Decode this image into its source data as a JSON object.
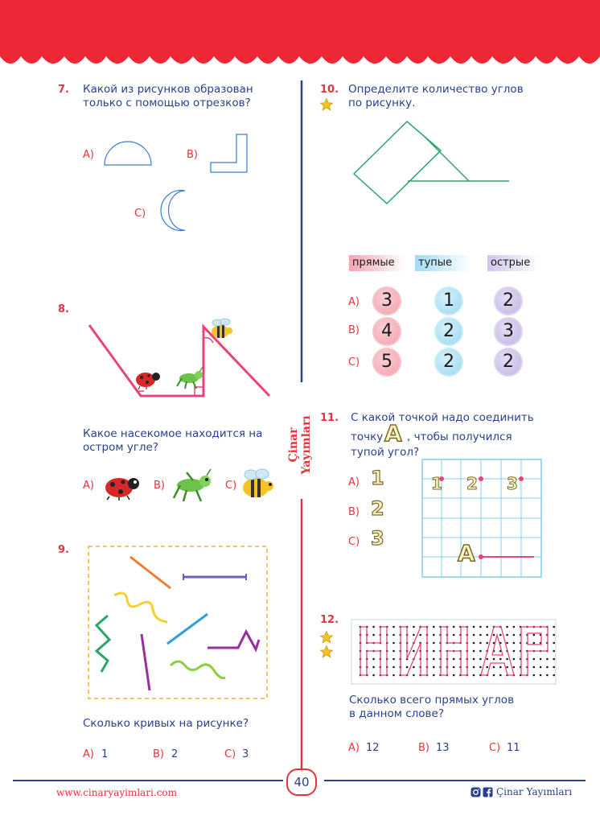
{
  "footer": {
    "website": "www.cinaryayimlari.com",
    "page_number": "40",
    "brand": "Çinar Yayımları"
  },
  "spine_text": "Çinar Yayımları",
  "q7": {
    "number": "7.",
    "text_line1": "Какой из рисунков образован",
    "text_line2": "только с помощью отрезков?",
    "option_a": "A)",
    "option_b": "B)",
    "option_c": "C)"
  },
  "q8": {
    "number": "8.",
    "text_line1": "Какое насекомое находится на",
    "text_line2": "остром угле?",
    "option_a": "A)",
    "option_b": "B)",
    "option_c": "C)"
  },
  "q9": {
    "number": "9.",
    "text": "Сколько кривых на рисунке?",
    "answers": [
      {
        "label": "A)",
        "value": "1"
      },
      {
        "label": "B)",
        "value": "2"
      },
      {
        "label": "C)",
        "value": "3"
      }
    ]
  },
  "q10": {
    "number": "10.",
    "text_line1": "Определите количество углов",
    "text_line2": "по рисунку.",
    "headers": [
      "прямые",
      "тупые",
      "острые"
    ],
    "rows": [
      {
        "label": "A)",
        "values": [
          "3",
          "1",
          "2"
        ]
      },
      {
        "label": "B)",
        "values": [
          "4",
          "2",
          "3"
        ]
      },
      {
        "label": "C)",
        "values": [
          "5",
          "2",
          "2"
        ]
      }
    ]
  },
  "q11": {
    "number": "11.",
    "text_line1": "С какой точкой надо соединить",
    "text_line2_pre": "точку",
    "point_letter": "A",
    "text_line2_post": ", чтобы получился",
    "text_line3": "тупой угол?",
    "options": [
      {
        "label": "A)",
        "value": "1"
      },
      {
        "label": "B)",
        "value": "2"
      },
      {
        "label": "C)",
        "value": "3"
      }
    ],
    "grid_points": [
      "1",
      "2",
      "3"
    ],
    "grid_point_a": "A"
  },
  "q12": {
    "number": "12.",
    "text_line1": "Сколько всего прямых углов",
    "text_line2": "в данном слове?",
    "answers": [
      {
        "label": "A)",
        "value": "12"
      },
      {
        "label": "B)",
        "value": "13"
      },
      {
        "label": "C)",
        "value": "11"
      }
    ]
  },
  "colors": {
    "red": "#e8323c",
    "blue": "#2b3f8c",
    "pink": "#e8437a",
    "green": "#2aa66a"
  }
}
